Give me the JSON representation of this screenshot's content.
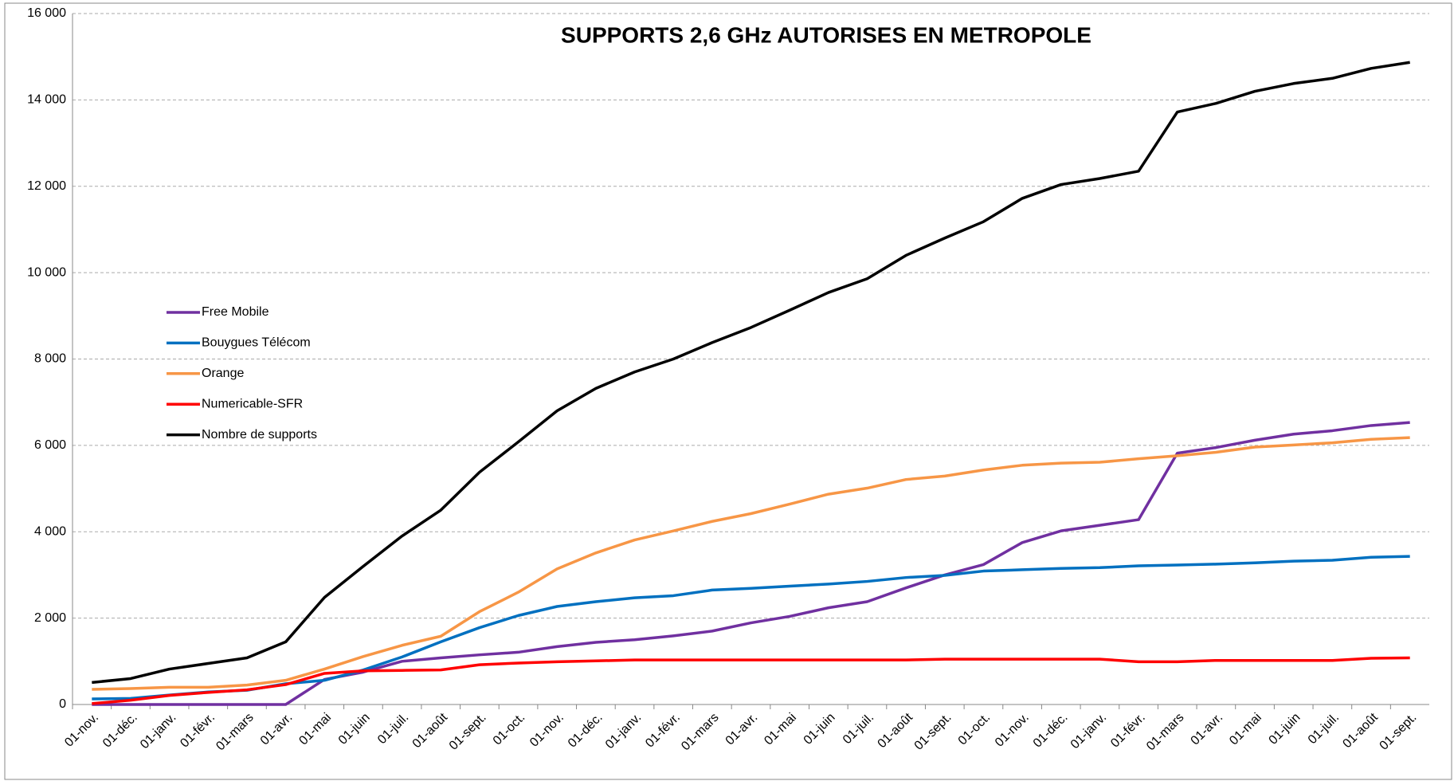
{
  "chart_data": {
    "type": "line",
    "title": "SUPPORTS 2,6 GHz AUTORISES EN METROPOLE",
    "categories": [
      "01-nov.",
      "01-déc.",
      "01-janv.",
      "01-févr.",
      "01-mars",
      "01-avr.",
      "01-mai",
      "01-juin",
      "01-juil.",
      "01-août",
      "01-sept.",
      "01-oct.",
      "01-nov.",
      "01-déc.",
      "01-janv.",
      "01-févr.",
      "01-mars",
      "01-avr.",
      "01-mai",
      "01-juin",
      "01-juil.",
      "01-août",
      "01-sept.",
      "01-oct.",
      "01-nov.",
      "01-déc.",
      "01-janv.",
      "01-févr.",
      "01-mars",
      "01-avr.",
      "01-mai",
      "01-juin",
      "01-juil.",
      "01-août",
      "01-sept."
    ],
    "series": [
      {
        "name": "Free Mobile",
        "color": "#7030a0",
        "values": [
          0,
          0,
          0,
          0,
          0,
          0,
          580,
          750,
          1000,
          1080,
          1150,
          1210,
          1340,
          1440,
          1500,
          1590,
          1700,
          1890,
          2040,
          2240,
          2380,
          2700,
          3000,
          3240,
          3750,
          4020,
          4150,
          4280,
          5820,
          5950,
          6120,
          6260,
          6340,
          6460,
          6530
        ]
      },
      {
        "name": "Bouygues Télécom",
        "color": "#0070c0",
        "values": [
          130,
          140,
          220,
          290,
          330,
          480,
          560,
          800,
          1100,
          1450,
          1780,
          2060,
          2270,
          2380,
          2470,
          2520,
          2650,
          2690,
          2740,
          2790,
          2850,
          2940,
          2990,
          3090,
          3120,
          3150,
          3170,
          3210,
          3230,
          3250,
          3280,
          3320,
          3340,
          3410,
          3430
        ]
      },
      {
        "name": "Orange",
        "color": "#f79646",
        "values": [
          350,
          370,
          400,
          400,
          450,
          560,
          820,
          1110,
          1370,
          1580,
          2150,
          2600,
          3140,
          3510,
          3810,
          4020,
          4240,
          4420,
          4640,
          4870,
          5010,
          5210,
          5290,
          5430,
          5540,
          5590,
          5610,
          5690,
          5760,
          5840,
          5960,
          6010,
          6060,
          6140,
          6180
        ]
      },
      {
        "name": "Numericable-SFR",
        "color": "#ff0000",
        "values": [
          20,
          100,
          210,
          280,
          340,
          460,
          720,
          780,
          790,
          800,
          920,
          960,
          990,
          1010,
          1030,
          1030,
          1030,
          1030,
          1030,
          1030,
          1030,
          1030,
          1050,
          1050,
          1050,
          1050,
          1050,
          990,
          990,
          1020,
          1020,
          1020,
          1020,
          1070,
          1080
        ]
      },
      {
        "name": "Nombre de supports",
        "color": "#000000",
        "values": [
          510,
          600,
          820,
          950,
          1080,
          1450,
          2480,
          3200,
          3900,
          4500,
          5380,
          6080,
          6800,
          7320,
          7700,
          8000,
          8380,
          8730,
          9130,
          9540,
          9860,
          10400,
          10800,
          11180,
          11720,
          12040,
          12180,
          12350,
          13720,
          13920,
          14200,
          14380,
          14500,
          14730,
          14870
        ]
      }
    ],
    "ylim": [
      0,
      16000
    ],
    "yticks": [
      0,
      {
        "value": 2000,
        "label": "2 000"
      },
      {
        "value": 4000,
        "label": "4 000"
      },
      {
        "value": 6000,
        "label": "6 000"
      },
      {
        "value": 8000,
        "label": "8 000"
      },
      {
        "value": 10000,
        "label": "10 000"
      },
      {
        "value": 12000,
        "label": "12 000"
      },
      {
        "value": 14000,
        "label": "14 000"
      },
      {
        "value": 16000,
        "label": "16 000"
      }
    ],
    "grid": true
  }
}
